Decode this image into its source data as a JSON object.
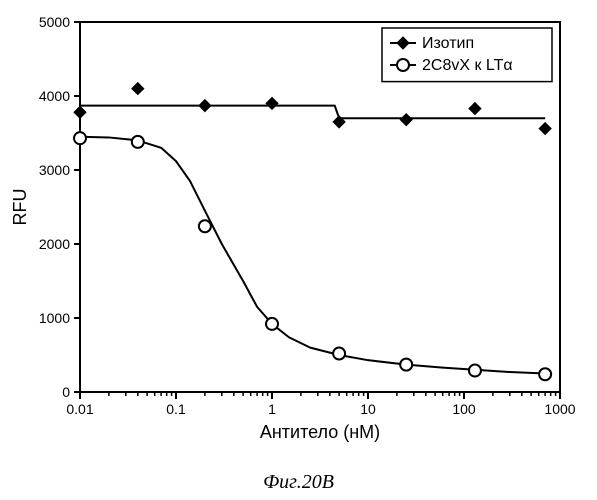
{
  "figure": {
    "caption": "Фиг.20В",
    "background_color": "#ffffff"
  },
  "chart": {
    "type": "line",
    "xlabel": "Антитело (нМ)",
    "ylabel": "RFU",
    "label_fontsize": 18,
    "tick_fontsize": 14,
    "axis_color": "#000000",
    "line_width": 2,
    "x_log": true,
    "xlim": [
      0.01,
      1000
    ],
    "ylim": [
      0,
      5000
    ],
    "ytick_step": 1000,
    "xticks": [
      0.01,
      0.1,
      1,
      10,
      100,
      1000
    ],
    "xtick_labels": [
      "0.01",
      "0.1",
      "1",
      "10",
      "100",
      "1000"
    ],
    "yticks": [
      0,
      1000,
      2000,
      3000,
      4000,
      5000
    ],
    "ytick_labels": [
      "0",
      "1000",
      "2000",
      "3000",
      "4000",
      "5000"
    ],
    "minor_ticks": true
  },
  "legend": {
    "border_color": "#000000",
    "background_color": "#ffffff",
    "fontsize": 16,
    "items": [
      {
        "label": "Изотип",
        "marker": "diamond-filled",
        "color": "#000000"
      },
      {
        "label": "2C8vX к LTα",
        "marker": "circle-open",
        "color": "#000000"
      }
    ]
  },
  "series": {
    "isotype": {
      "name": "Изотип",
      "color": "#000000",
      "marker": "diamond-filled",
      "line_width": 2,
      "x": [
        0.01,
        0.04,
        0.2,
        1,
        5,
        25,
        130,
        700
      ],
      "y": [
        3780,
        4100,
        3870,
        3900,
        3650,
        3680,
        3830,
        3560
      ],
      "fit_x": [
        0.01,
        0.04,
        0.2,
        1,
        4.5,
        5,
        25,
        130,
        700
      ],
      "fit_y": [
        3870,
        3870,
        3870,
        3870,
        3870,
        3700,
        3700,
        3700,
        3700
      ]
    },
    "c8vx": {
      "name": "2C8vX к LTα",
      "color": "#000000",
      "marker": "circle-open",
      "line_width": 2,
      "x": [
        0.01,
        0.04,
        0.2,
        1,
        5,
        25,
        130,
        700
      ],
      "y": [
        3430,
        3380,
        2240,
        920,
        520,
        370,
        290,
        240
      ],
      "fit_x": [
        0.01,
        0.02,
        0.04,
        0.07,
        0.1,
        0.14,
        0.2,
        0.3,
        0.5,
        0.7,
        1,
        1.5,
        2.5,
        5,
        10,
        25,
        60,
        130,
        300,
        700
      ],
      "fit_y": [
        3450,
        3440,
        3400,
        3300,
        3120,
        2850,
        2450,
        2000,
        1500,
        1150,
        920,
        740,
        600,
        500,
        430,
        370,
        330,
        300,
        270,
        250
      ]
    }
  }
}
